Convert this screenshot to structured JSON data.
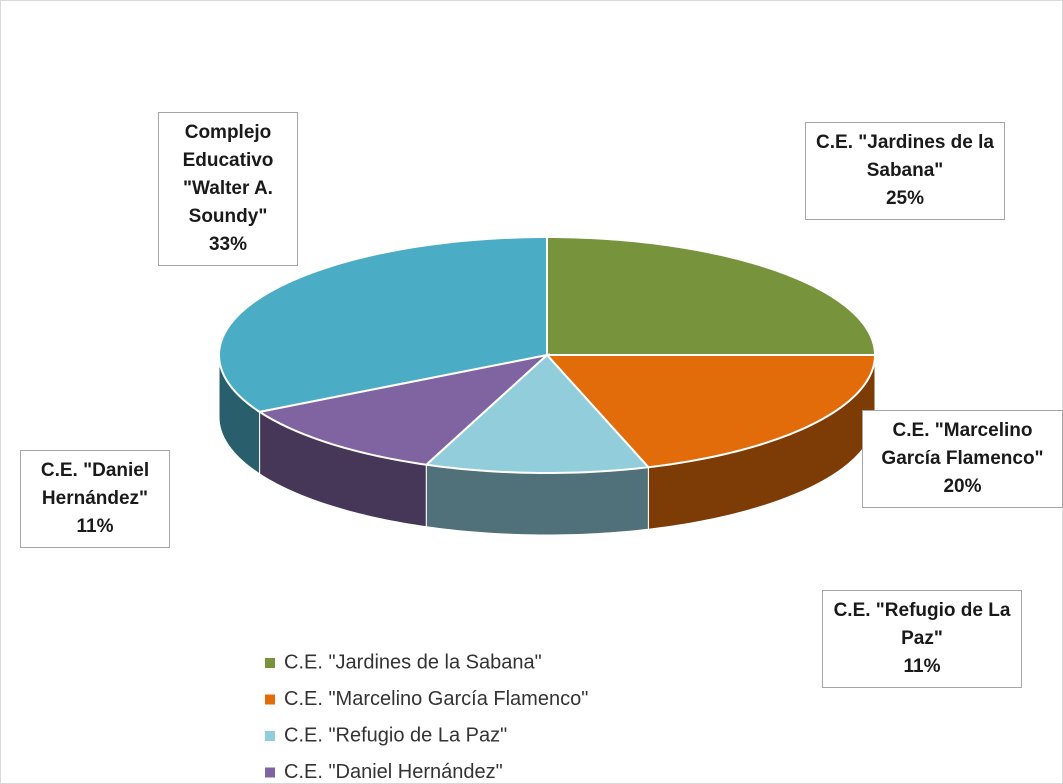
{
  "chart_data": {
    "type": "pie3d",
    "categories": [
      "C.E. \"Jardines de la Sabana\"",
      "C.E. \"Marcelino García Flamenco\"",
      "C.E. \"Refugio de La Paz\"",
      "C.E. \"Daniel Hernández\"",
      "Complejo Educativo \"Walter A. Soundy\""
    ],
    "values": [
      25,
      20,
      11,
      11,
      33
    ],
    "value_labels": [
      "25%",
      "20%",
      "11%",
      "11%",
      "33%"
    ],
    "colors": [
      "#77933c",
      "#e36c0a",
      "#92cddc",
      "#8064a2",
      "#4bacc6"
    ],
    "legend": "bottom"
  }
}
